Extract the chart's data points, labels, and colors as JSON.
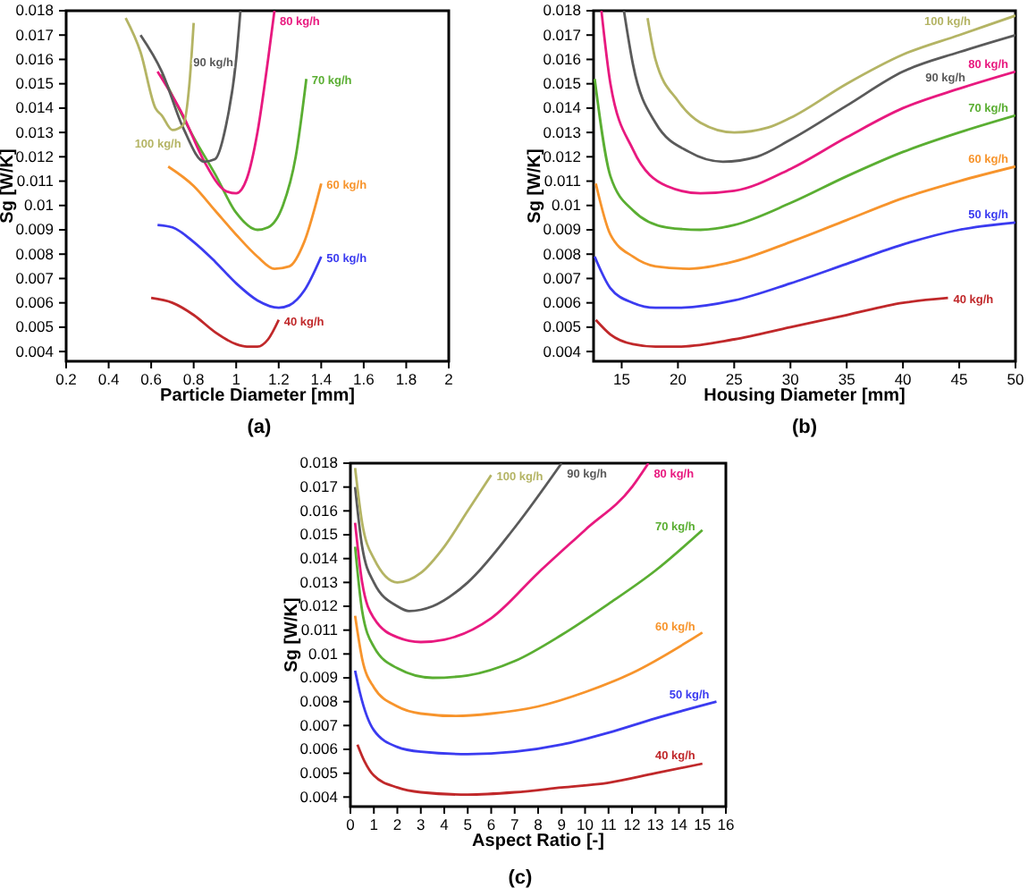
{
  "chart_data": [
    {
      "type": "line",
      "title": "(a)",
      "xlabel": "Particle Diameter [mm]",
      "ylabel": "Sg [W/K]",
      "xlim": [
        0.2,
        2
      ],
      "ylim": [
        0.0036,
        0.018
      ],
      "xticks": [
        0.2,
        0.4,
        0.6,
        0.8,
        1,
        1.2,
        1.4,
        1.6,
        1.8,
        2
      ],
      "yticks": [
        0.004,
        0.005,
        0.006,
        0.007,
        0.008,
        0.009,
        0.01,
        0.011,
        0.012,
        0.013,
        0.014,
        0.015,
        0.016,
        0.017,
        0.018
      ],
      "series": [
        {
          "name": "40 kg/h",
          "color": "#c0282a",
          "x": [
            0.6,
            0.7,
            0.8,
            0.9,
            1.0,
            1.05,
            1.1,
            1.15,
            1.2
          ],
          "values": [
            0.0062,
            0.006,
            0.0055,
            0.0048,
            0.0043,
            0.0042,
            0.0042,
            0.0045,
            0.0053
          ]
        },
        {
          "name": "50 kg/h",
          "color": "#3b3bf0",
          "x": [
            0.63,
            0.7,
            0.8,
            0.9,
            1.0,
            1.1,
            1.2,
            1.25,
            1.32,
            1.4
          ],
          "values": [
            0.0092,
            0.0091,
            0.0085,
            0.0077,
            0.0068,
            0.0061,
            0.0058,
            0.0059,
            0.0065,
            0.0079
          ]
        },
        {
          "name": "60 kg/h",
          "color": "#f7942c",
          "x": [
            0.68,
            0.8,
            0.9,
            1.0,
            1.1,
            1.18,
            1.25,
            1.32,
            1.4
          ],
          "values": [
            0.0116,
            0.0108,
            0.0098,
            0.0088,
            0.0079,
            0.0074,
            0.0075,
            0.0085,
            0.0109
          ]
        },
        {
          "name": "70 kg/h",
          "color": "#5aae32",
          "x": [
            0.65,
            0.8,
            0.9,
            1.0,
            1.1,
            1.15,
            1.22,
            1.28,
            1.33
          ],
          "values": [
            0.0154,
            0.0128,
            0.0113,
            0.0097,
            0.009,
            0.0091,
            0.01,
            0.012,
            0.0152
          ]
        },
        {
          "name": "80 kg/h",
          "color": "#e8197f",
          "x": [
            0.63,
            0.75,
            0.85,
            0.95,
            1.0,
            1.05,
            1.1,
            1.15,
            1.18
          ],
          "values": [
            0.0155,
            0.0137,
            0.0118,
            0.0106,
            0.0105,
            0.0111,
            0.013,
            0.016,
            0.018
          ]
        },
        {
          "name": "90 kg/h",
          "color": "#5a5a5a",
          "x": [
            0.55,
            0.65,
            0.75,
            0.85,
            0.9,
            0.95,
            1.0,
            1.02
          ],
          "values": [
            0.017,
            0.0155,
            0.0132,
            0.0118,
            0.0119,
            0.0132,
            0.016,
            0.018
          ]
        },
        {
          "name": "100 kg/h",
          "color": "#b4b464",
          "x": [
            0.48,
            0.55,
            0.62,
            0.65,
            0.7,
            0.75,
            0.78,
            0.8
          ],
          "values": [
            0.0177,
            0.0163,
            0.014,
            0.0137,
            0.0131,
            0.0133,
            0.015,
            0.0175
          ]
        }
      ]
    },
    {
      "type": "line",
      "title": "(b)",
      "xlabel": "Housing Diameter [mm]",
      "ylabel": "Sg [W/K]",
      "xlim": [
        12.5,
        50
      ],
      "ylim": [
        0.0036,
        0.018
      ],
      "xticks": [
        15,
        20,
        25,
        30,
        35,
        40,
        45,
        50
      ],
      "yticks": [
        0.004,
        0.005,
        0.006,
        0.007,
        0.008,
        0.009,
        0.01,
        0.011,
        0.012,
        0.013,
        0.014,
        0.015,
        0.016,
        0.017,
        0.018
      ],
      "series": [
        {
          "name": "40 kg/h",
          "color": "#c0282a",
          "x": [
            12.7,
            14,
            16,
            18,
            20,
            25,
            30,
            35,
            40,
            44
          ],
          "values": [
            0.0053,
            0.0047,
            0.0043,
            0.0042,
            0.0042,
            0.0045,
            0.005,
            0.0055,
            0.006,
            0.0062
          ]
        },
        {
          "name": "50 kg/h",
          "color": "#3b3bf0",
          "x": [
            12.6,
            14,
            16,
            18,
            20,
            25,
            30,
            35,
            40,
            45,
            50
          ],
          "values": [
            0.0079,
            0.0066,
            0.006,
            0.0058,
            0.0058,
            0.0061,
            0.0068,
            0.0076,
            0.0084,
            0.009,
            0.0093
          ]
        },
        {
          "name": "60 kg/h",
          "color": "#f7942c",
          "x": [
            12.7,
            14,
            16,
            18,
            21,
            25,
            30,
            35,
            40,
            45,
            50
          ],
          "values": [
            0.0109,
            0.0088,
            0.0079,
            0.0075,
            0.0074,
            0.0077,
            0.0085,
            0.0094,
            0.0103,
            0.011,
            0.0116
          ]
        },
        {
          "name": "70 kg/h",
          "color": "#5aae32",
          "x": [
            12.6,
            14,
            16,
            19,
            22,
            25,
            30,
            35,
            40,
            45,
            50
          ],
          "values": [
            0.0152,
            0.0112,
            0.0098,
            0.0091,
            0.009,
            0.0092,
            0.0101,
            0.0112,
            0.0122,
            0.013,
            0.0137
          ]
        },
        {
          "name": "80 kg/h",
          "color": "#e8197f",
          "x": [
            13.2,
            14,
            16,
            19,
            22,
            25,
            30,
            35,
            40,
            45,
            50
          ],
          "values": [
            0.018,
            0.015,
            0.0123,
            0.0108,
            0.0105,
            0.0106,
            0.0115,
            0.0128,
            0.014,
            0.0148,
            0.0155
          ]
        },
        {
          "name": "90 kg/h",
          "color": "#5a5a5a",
          "x": [
            15.2,
            16,
            18,
            21,
            24,
            27,
            30,
            35,
            40,
            45,
            50
          ],
          "values": [
            0.018,
            0.0158,
            0.0134,
            0.0122,
            0.0118,
            0.012,
            0.0127,
            0.0141,
            0.0155,
            0.0163,
            0.017
          ]
        },
        {
          "name": "100 kg/h",
          "color": "#b4b464",
          "x": [
            17.3,
            18,
            20,
            22,
            25,
            28,
            30,
            35,
            40,
            45,
            50
          ],
          "values": [
            0.0177,
            0.016,
            0.0143,
            0.0134,
            0.013,
            0.0132,
            0.0136,
            0.015,
            0.0162,
            0.017,
            0.0178
          ]
        }
      ]
    },
    {
      "type": "line",
      "title": "(c)",
      "xlabel": "Aspect Ratio [-]",
      "ylabel": "Sg [W/K]",
      "xlim": [
        0,
        16
      ],
      "ylim": [
        0.0036,
        0.018
      ],
      "xticks": [
        0,
        1,
        2,
        3,
        4,
        5,
        6,
        7,
        8,
        9,
        10,
        11,
        12,
        13,
        14,
        15,
        16
      ],
      "yticks": [
        0.004,
        0.005,
        0.006,
        0.007,
        0.008,
        0.009,
        0.01,
        0.011,
        0.012,
        0.013,
        0.014,
        0.015,
        0.016,
        0.017,
        0.018
      ],
      "series": [
        {
          "name": "40 kg/h",
          "color": "#c0282a",
          "x": [
            0.3,
            0.6,
            1,
            2,
            3,
            5,
            7,
            9,
            11,
            13,
            15
          ],
          "values": [
            0.0062,
            0.0055,
            0.0049,
            0.0044,
            0.0042,
            0.0041,
            0.0042,
            0.0044,
            0.0046,
            0.005,
            0.0054
          ]
        },
        {
          "name": "50 kg/h",
          "color": "#3b3bf0",
          "x": [
            0.2,
            0.4,
            1,
            2,
            3,
            5,
            7,
            9,
            11,
            13,
            15.6
          ],
          "values": [
            0.0093,
            0.0084,
            0.0068,
            0.0061,
            0.0059,
            0.0058,
            0.0059,
            0.0062,
            0.0067,
            0.0073,
            0.008
          ]
        },
        {
          "name": "60 kg/h",
          "color": "#f7942c",
          "x": [
            0.2,
            0.5,
            1,
            2,
            3,
            4.5,
            6,
            8,
            10,
            12,
            15
          ],
          "values": [
            0.0116,
            0.0098,
            0.0086,
            0.0078,
            0.0075,
            0.0074,
            0.0075,
            0.0078,
            0.0084,
            0.0092,
            0.0109
          ]
        },
        {
          "name": "70 kg/h",
          "color": "#5aae32",
          "x": [
            0.2,
            0.5,
            1,
            2,
            3.5,
            5,
            7,
            9,
            11,
            13,
            15
          ],
          "values": [
            0.0145,
            0.0118,
            0.0103,
            0.0094,
            0.009,
            0.0091,
            0.0097,
            0.0108,
            0.0121,
            0.0135,
            0.0152
          ]
        },
        {
          "name": "80 kg/h",
          "color": "#e8197f",
          "x": [
            0.2,
            0.5,
            1,
            2,
            3,
            4,
            6,
            8,
            10,
            12,
            12.7
          ],
          "values": [
            0.0155,
            0.013,
            0.0115,
            0.0107,
            0.0105,
            0.0106,
            0.0115,
            0.0134,
            0.0152,
            0.017,
            0.018
          ]
        },
        {
          "name": "90 kg/h",
          "color": "#5a5a5a",
          "x": [
            0.2,
            0.5,
            1,
            2,
            2.5,
            3.5,
            5,
            7,
            9
          ],
          "values": [
            0.017,
            0.0145,
            0.013,
            0.012,
            0.0118,
            0.012,
            0.013,
            0.0153,
            0.018
          ]
        },
        {
          "name": "100 kg/h",
          "color": "#b4b464",
          "x": [
            0.2,
            0.5,
            1,
            2,
            3,
            4,
            5,
            6
          ],
          "values": [
            0.0178,
            0.0155,
            0.014,
            0.013,
            0.0134,
            0.0145,
            0.016,
            0.0175
          ]
        }
      ]
    }
  ]
}
